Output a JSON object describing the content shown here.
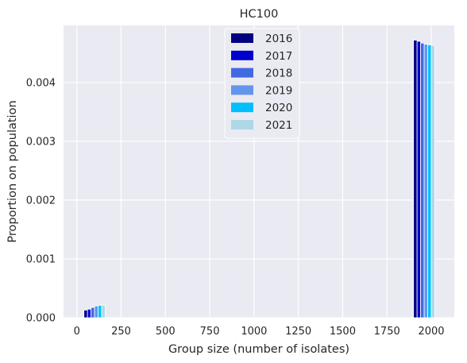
{
  "chart_data": {
    "type": "bar",
    "title": "HC100",
    "xlabel": "Group size (number of isolates)",
    "ylabel": "Proportion on population",
    "xlim": [
      -75,
      2130
    ],
    "ylim": [
      0,
      0.00497
    ],
    "xticks": [
      0,
      250,
      500,
      750,
      1000,
      1250,
      1500,
      1750,
      2000
    ],
    "yticks": [
      0.0,
      0.001,
      0.002,
      0.003,
      0.004
    ],
    "ytick_labels": [
      "0.000",
      "0.001",
      "0.002",
      "0.003",
      "0.004"
    ],
    "grid": true,
    "legend_placement": "top-center",
    "groups": [
      {
        "center": 100,
        "values": [
          0.00013,
          0.000145,
          0.000175,
          0.0002,
          0.00021,
          0.000215
        ]
      },
      {
        "center": 1960,
        "values": [
          0.00472,
          0.0047,
          0.00467,
          0.00465,
          0.00464,
          0.00463
        ]
      }
    ],
    "series": [
      {
        "name": "2016",
        "color": "#000080"
      },
      {
        "name": "2017",
        "color": "#0000cd"
      },
      {
        "name": "2018",
        "color": "#4169e1"
      },
      {
        "name": "2019",
        "color": "#6495ed"
      },
      {
        "name": "2020",
        "color": "#00bfff"
      },
      {
        "name": "2021",
        "color": "#add8e6"
      }
    ]
  }
}
